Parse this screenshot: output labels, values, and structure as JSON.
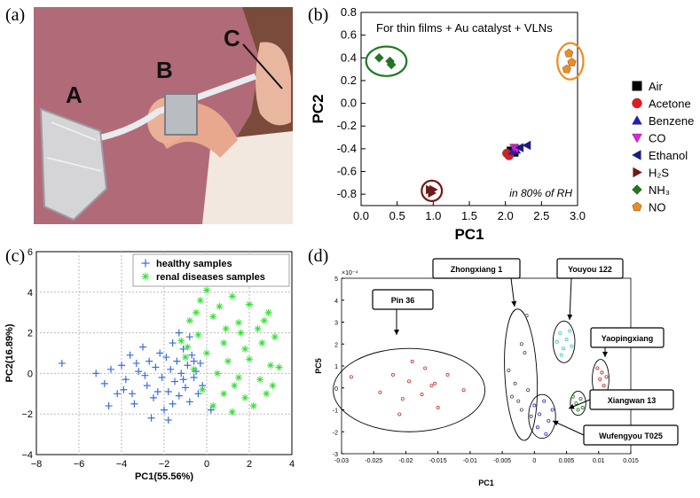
{
  "panels": {
    "a": {
      "tag": "(a)",
      "photo_labels": {
        "A": "A",
        "B": "B",
        "C": "C"
      }
    },
    "b": {
      "tag": "(b)"
    },
    "c": {
      "tag": "(c)"
    },
    "d": {
      "tag": "(d)"
    }
  },
  "chart_data": [
    {
      "id": "b",
      "type": "scatter",
      "title": "For thin films + Au catalyst + VLNs",
      "annotation": "in 80% of RH",
      "xlabel": "PC1",
      "ylabel": "PC2",
      "xlim": [
        0.0,
        3.0
      ],
      "ylim": [
        -0.9,
        0.8
      ],
      "xticks": [
        "0.0",
        "0.5",
        "1.0",
        "1.5",
        "2.0",
        "2.5",
        "3.0"
      ],
      "yticks": [
        "0.8",
        "0.6",
        "0.4",
        "0.2",
        "0.0",
        "-0.2",
        "-0.4",
        "-0.6",
        "-0.8"
      ],
      "xtick_values": [
        0.0,
        0.5,
        1.0,
        1.5,
        2.0,
        2.5,
        3.0
      ],
      "ytick_values": [
        0.8,
        0.6,
        0.4,
        0.2,
        0.0,
        -0.2,
        -0.4,
        -0.6,
        -0.8
      ],
      "grid": false,
      "legend": "right",
      "series": [
        {
          "name": "Air",
          "marker": "square",
          "color": "#000000",
          "points": [
            [
              2.08,
              -0.42
            ],
            [
              2.12,
              -0.43
            ]
          ]
        },
        {
          "name": "Acetone",
          "marker": "circle",
          "color": "#e41a1c",
          "points": [
            [
              2.02,
              -0.44
            ],
            [
              2.05,
              -0.46
            ]
          ]
        },
        {
          "name": "Benzene",
          "marker": "triangle-up",
          "color": "#1f1fbf",
          "points": [
            [
              2.1,
              -0.42
            ],
            [
              2.15,
              -0.41
            ]
          ]
        },
        {
          "name": "CO",
          "marker": "triangle-down",
          "color": "#e020e0",
          "points": [
            [
              2.12,
              -0.39
            ],
            [
              2.16,
              -0.4
            ]
          ]
        },
        {
          "name": "Ethanol",
          "marker": "triangle-left",
          "color": "#1a1a8c",
          "points": [
            [
              2.2,
              -0.39
            ],
            [
              2.3,
              -0.37
            ]
          ]
        },
        {
          "name": "H₂S",
          "marker": "triangle-right",
          "color": "#7a1414",
          "points": [
            [
              0.95,
              -0.76
            ],
            [
              0.98,
              -0.79
            ],
            [
              1.0,
              -0.76
            ]
          ]
        },
        {
          "name": "NH₃",
          "marker": "diamond",
          "color": "#1f7a1f",
          "points": [
            [
              0.25,
              0.4
            ],
            [
              0.4,
              0.37
            ],
            [
              0.42,
              0.34
            ]
          ]
        },
        {
          "name": "NO",
          "marker": "pentagon",
          "color": "#f08c1e",
          "points": [
            [
              2.85,
              0.3
            ],
            [
              2.92,
              0.36
            ],
            [
              2.88,
              0.44
            ]
          ]
        }
      ],
      "groups": [
        {
          "cx": 0.35,
          "cy": 0.37,
          "rx": 0.28,
          "ry": 0.13,
          "color": "#1f7a1f"
        },
        {
          "cx": 0.98,
          "cy": -0.77,
          "rx": 0.14,
          "ry": 0.09,
          "color": "#7a1414"
        },
        {
          "cx": 2.9,
          "cy": 0.37,
          "rx": 0.18,
          "ry": 0.16,
          "color": "#f08c1e"
        }
      ]
    },
    {
      "id": "c",
      "type": "scatter",
      "xlabel": "PC1(55.56%)",
      "ylabel": "PC2(16.89%)",
      "xlim": [
        -8,
        4
      ],
      "ylim": [
        -4,
        6
      ],
      "xticks": [
        "−8",
        "−6",
        "−4",
        "−2",
        "0",
        "2",
        "4"
      ],
      "yticks": [
        "−4",
        "−2",
        "0",
        "2",
        "4",
        "6"
      ],
      "xtick_values": [
        -8,
        -6,
        -4,
        -2,
        0,
        2,
        4
      ],
      "ytick_values": [
        -4,
        -2,
        0,
        2,
        4,
        6
      ],
      "grid": true,
      "legend": "top-right",
      "series": [
        {
          "name": "healthy samples",
          "marker": "plus",
          "color": "#3a6fd8",
          "points": [
            [
              -6.8,
              0.5
            ],
            [
              -5.2,
              0
            ],
            [
              -4.8,
              -0.5
            ],
            [
              -4.5,
              0.2
            ],
            [
              -4.2,
              -1
            ],
            [
              -4.0,
              0.4
            ],
            [
              -3.8,
              -0.3
            ],
            [
              -3.6,
              0.9
            ],
            [
              -3.4,
              -1.5
            ],
            [
              -3.2,
              0.1
            ],
            [
              -3.0,
              1.3
            ],
            [
              -2.8,
              -0.6
            ],
            [
              -2.7,
              0.6
            ],
            [
              -2.5,
              -1.2
            ],
            [
              -2.4,
              0.3
            ],
            [
              -2.2,
              1.0
            ],
            [
              -2.1,
              -0.2
            ],
            [
              -2.0,
              -1.8
            ],
            [
              -1.9,
              0.8
            ],
            [
              -1.8,
              -0.9
            ],
            [
              -1.7,
              0.2
            ],
            [
              -1.6,
              1.5
            ],
            [
              -1.5,
              -0.4
            ],
            [
              -1.4,
              0.6
            ],
            [
              -1.3,
              -1.1
            ],
            [
              -1.2,
              0.0
            ],
            [
              -1.1,
              1.2
            ],
            [
              -1.0,
              -0.7
            ],
            [
              -0.9,
              0.4
            ],
            [
              -0.8,
              -1.4
            ],
            [
              -0.7,
              0.9
            ],
            [
              -0.6,
              -0.2
            ],
            [
              -0.5,
              0.1
            ],
            [
              -0.4,
              -1.0
            ],
            [
              -0.3,
              0.5
            ],
            [
              -1.3,
              2.0
            ],
            [
              -0.8,
              1.8
            ],
            [
              -3.5,
              -1.0
            ],
            [
              -2.6,
              -2.2
            ],
            [
              -1.8,
              -2.3
            ],
            [
              -4.6,
              -1.6
            ],
            [
              -3.9,
              -0.8
            ],
            [
              -2.3,
              -0.9
            ],
            [
              -1.6,
              -1.5
            ],
            [
              -0.2,
              -0.6
            ],
            [
              0.2,
              -1.8
            ],
            [
              -2.9,
              -0.1
            ],
            [
              -3.3,
              0.5
            ],
            [
              -1.1,
              -0.3
            ],
            [
              -0.6,
              0.6
            ]
          ]
        },
        {
          "name": "renal diseases samples",
          "marker": "asterisk",
          "color": "#33e033",
          "points": [
            [
              0.0,
              4.1
            ],
            [
              -0.3,
              3.6
            ],
            [
              0.6,
              3.3
            ],
            [
              1.2,
              3.8
            ],
            [
              2.0,
              3.4
            ],
            [
              2.9,
              3.0
            ],
            [
              -0.8,
              2.6
            ],
            [
              0.3,
              2.8
            ],
            [
              1.5,
              2.5
            ],
            [
              2.4,
              2.2
            ],
            [
              3.2,
              1.8
            ],
            [
              -1.2,
              1.6
            ],
            [
              -0.4,
              1.9
            ],
            [
              0.8,
              1.5
            ],
            [
              1.8,
              1.2
            ],
            [
              2.6,
              1.5
            ],
            [
              -1.0,
              0.8
            ],
            [
              0.0,
              1.0
            ],
            [
              1.0,
              0.6
            ],
            [
              2.0,
              0.7
            ],
            [
              3.0,
              0.4
            ],
            [
              -0.6,
              0.2
            ],
            [
              0.5,
              0.0
            ],
            [
              1.5,
              -0.2
            ],
            [
              2.5,
              -0.3
            ],
            [
              3.4,
              0.3
            ],
            [
              -0.2,
              -0.8
            ],
            [
              0.8,
              -1.0
            ],
            [
              1.8,
              -1.2
            ],
            [
              2.8,
              -1.0
            ],
            [
              1.2,
              -1.9
            ],
            [
              2.2,
              -1.6
            ],
            [
              0.3,
              -1.6
            ],
            [
              3.1,
              -0.6
            ],
            [
              -0.9,
              1.3
            ],
            [
              1.6,
              2.0
            ],
            [
              2.7,
              2.6
            ],
            [
              0.9,
              2.2
            ],
            [
              -0.5,
              3.0
            ],
            [
              1.3,
              -0.6
            ]
          ]
        }
      ]
    },
    {
      "id": "d",
      "type": "scatter",
      "xlabel": "PC1",
      "ylabel": "PC5",
      "exponent": "×10⁻⁴",
      "xlim": [
        -0.03,
        0.015
      ],
      "ylim": [
        -3,
        5
      ],
      "xticks": [
        "-0.03",
        "-0.025",
        "-0.02",
        "-0.015",
        "-0.01",
        "-0.005",
        "0",
        "0.005",
        "0.01",
        "0.015"
      ],
      "yticks": [
        "5",
        "4",
        "3",
        "2",
        "1",
        "0",
        "-1",
        "-2",
        "-3"
      ],
      "xtick_values": [
        -0.03,
        -0.025,
        -0.02,
        -0.015,
        -0.01,
        -0.005,
        0,
        0.005,
        0.01,
        0.015
      ],
      "ytick_values": [
        5,
        4,
        3,
        2,
        1,
        0,
        -1,
        -2,
        -3
      ],
      "grid": false,
      "legend": "",
      "series": [
        {
          "name": "Pin 36",
          "color": "#c83030",
          "points": [
            [
              -0.0285,
              0.5
            ],
            [
              -0.024,
              -0.2
            ],
            [
              -0.022,
              0.6
            ],
            [
              -0.0205,
              -0.5
            ],
            [
              -0.0195,
              0.3
            ],
            [
              -0.019,
              1.2
            ],
            [
              -0.0175,
              -0.3
            ],
            [
              -0.017,
              0.9
            ],
            [
              -0.016,
              0.1
            ],
            [
              -0.015,
              -0.9
            ],
            [
              -0.0135,
              0.6
            ],
            [
              -0.011,
              -0.1
            ],
            [
              -0.021,
              -1.2
            ],
            [
              -0.0155,
              0.2
            ]
          ]
        },
        {
          "name": "Zhongxiang 1",
          "color": "#4a4a6a",
          "points": [
            [
              -0.004,
              0.8
            ],
            [
              -0.003,
              0.2
            ],
            [
              -0.0025,
              -0.6
            ],
            [
              -0.002,
              -1.0
            ],
            [
              -0.0015,
              1.6
            ],
            [
              -0.001,
              -0.1
            ],
            [
              -0.0005,
              -1.3
            ],
            [
              -0.0012,
              3.3
            ],
            [
              -0.002,
              2.0
            ],
            [
              -0.0035,
              -0.4
            ]
          ]
        },
        {
          "name": "Youyou 122",
          "color": "#30c8c8",
          "points": [
            [
              0.0035,
              2.1
            ],
            [
              0.004,
              2.5
            ],
            [
              0.0045,
              1.8
            ],
            [
              0.005,
              2.2
            ],
            [
              0.0055,
              2.6
            ],
            [
              0.0042,
              1.5
            ],
            [
              0.0058,
              1.9
            ]
          ]
        },
        {
          "name": "Yaopingxiang",
          "color": "#d02020",
          "points": [
            [
              0.0098,
              0.9
            ],
            [
              0.0102,
              0.4
            ],
            [
              0.0105,
              0.7
            ],
            [
              0.0108,
              0.1
            ],
            [
              0.0112,
              0.5
            ],
            [
              0.01,
              -0.2
            ]
          ]
        },
        {
          "name": "Xiangwan 13",
          "color": "#1a7a1a",
          "points": [
            [
              0.006,
              -0.4
            ],
            [
              0.0065,
              -0.7
            ],
            [
              0.0068,
              -1.0
            ],
            [
              0.0072,
              -0.5
            ],
            [
              0.0075,
              -0.9
            ]
          ]
        },
        {
          "name": "Wufengyou T025",
          "color": "#3030c0",
          "points": [
            [
              0.0,
              -0.8
            ],
            [
              0.0008,
              -1.2
            ],
            [
              0.0015,
              -0.6
            ],
            [
              0.0022,
              -1.5
            ],
            [
              0.0028,
              -1.0
            ],
            [
              0.0005,
              -1.8
            ],
            [
              0.0018,
              -2.1
            ]
          ]
        }
      ],
      "ellipses": [
        {
          "cx": -0.0195,
          "cy": -0.1,
          "rx": 0.0118,
          "ry": 1.9
        },
        {
          "cx": -0.0021,
          "cy": 0.6,
          "rx": 0.0025,
          "ry": 3.0
        },
        {
          "cx": 0.0046,
          "cy": 2.1,
          "rx": 0.0017,
          "ry": 0.95
        },
        {
          "cx": 0.0103,
          "cy": 0.4,
          "rx": 0.0013,
          "ry": 0.9
        },
        {
          "cx": 0.0068,
          "cy": -0.7,
          "rx": 0.0012,
          "ry": 0.55
        },
        {
          "cx": 0.0012,
          "cy": -1.3,
          "rx": 0.0021,
          "ry": 1.0
        }
      ],
      "callouts": [
        {
          "label": "Pin 36"
        },
        {
          "label": "Zhongxiang 1"
        },
        {
          "label": "Youyou 122"
        },
        {
          "label": "Yaopingxiang"
        },
        {
          "label": "Xiangwan 13"
        },
        {
          "label": "Wufengyou T025"
        }
      ]
    }
  ]
}
